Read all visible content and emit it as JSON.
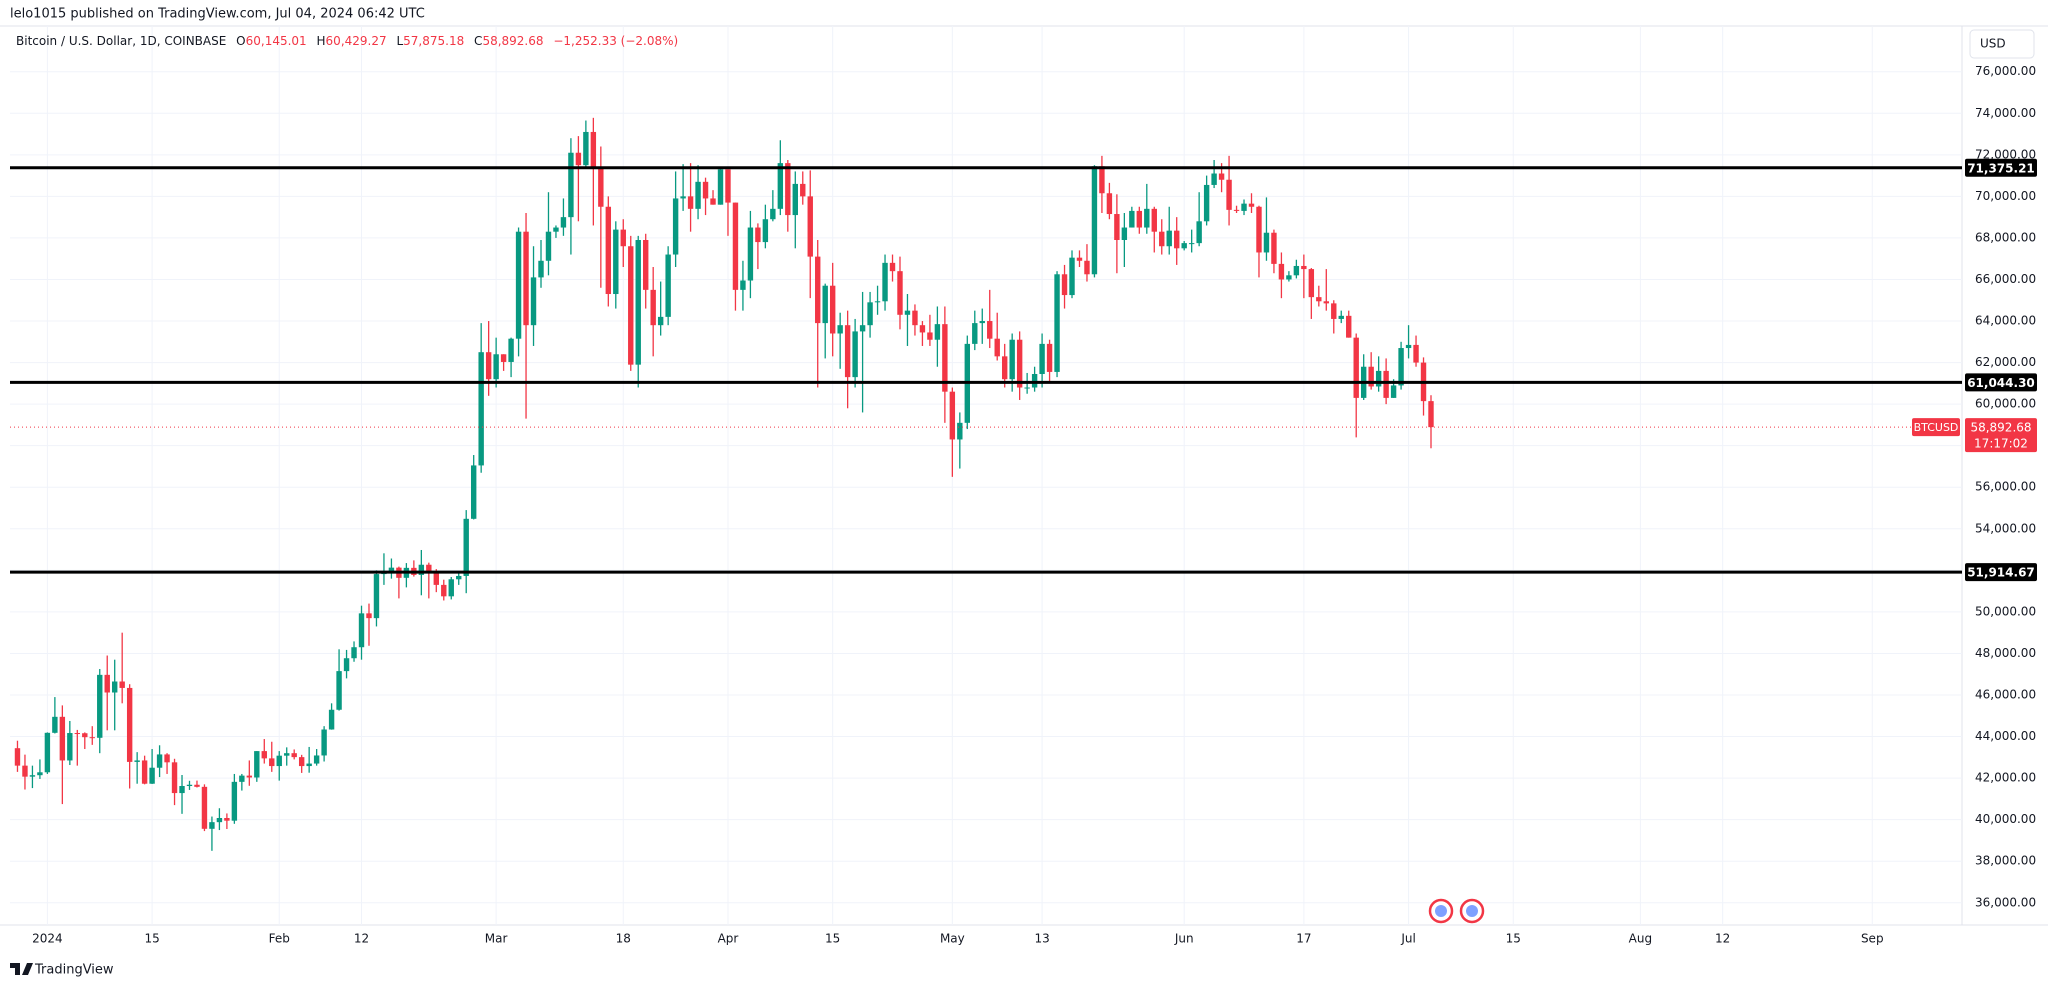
{
  "header": {
    "published": "lelo1015 published on TradingView.com, Jul 04, 2024 06:42 UTC"
  },
  "footer": {
    "brand": "TradingView"
  },
  "chart_data": {
    "type": "candlestick",
    "title": "Bitcoin / U.S. Dollar, 1D, COINBASE",
    "currency": "USD",
    "legend": [
      {
        "key": "O",
        "value": "60,145.01"
      },
      {
        "key": "H",
        "value": "60,429.27"
      },
      {
        "key": "L",
        "value": "57,875.18"
      },
      {
        "key": "C",
        "value": "58,892.68"
      }
    ],
    "change": "−1,252.33 (−2.08%)",
    "up_color": "#089981",
    "down_color": "#f23645",
    "grid": true,
    "dates": [
      "2023-12-28",
      "2023-12-29",
      "2023-12-30",
      "2023-12-31",
      "2024-01-01",
      "2024-01-02",
      "2024-01-03",
      "2024-01-04",
      "2024-01-05",
      "2024-01-06",
      "2024-01-07",
      "2024-01-08",
      "2024-01-09",
      "2024-01-10",
      "2024-01-11",
      "2024-01-12",
      "2024-01-13",
      "2024-01-14",
      "2024-01-15",
      "2024-01-16",
      "2024-01-17",
      "2024-01-18",
      "2024-01-19",
      "2024-01-20",
      "2024-01-21",
      "2024-01-22",
      "2024-01-23",
      "2024-01-24",
      "2024-01-25",
      "2024-01-26",
      "2024-01-27",
      "2024-01-28",
      "2024-01-29",
      "2024-01-30",
      "2024-01-31",
      "2024-02-01",
      "2024-02-02",
      "2024-02-03",
      "2024-02-04",
      "2024-02-05",
      "2024-02-06",
      "2024-02-07",
      "2024-02-08",
      "2024-02-09",
      "2024-02-10",
      "2024-02-11",
      "2024-02-12",
      "2024-02-13",
      "2024-02-14",
      "2024-02-15",
      "2024-02-16",
      "2024-02-17",
      "2024-02-18",
      "2024-02-19",
      "2024-02-20",
      "2024-02-21",
      "2024-02-22",
      "2024-02-23",
      "2024-02-24",
      "2024-02-25",
      "2024-02-26",
      "2024-02-27",
      "2024-02-28",
      "2024-02-29",
      "2024-03-01",
      "2024-03-02",
      "2024-03-03",
      "2024-03-04",
      "2024-03-05",
      "2024-03-06",
      "2024-03-07",
      "2024-03-08",
      "2024-03-09",
      "2024-03-10",
      "2024-03-11",
      "2024-03-12",
      "2024-03-13",
      "2024-03-14",
      "2024-03-15",
      "2024-03-16",
      "2024-03-17",
      "2024-03-18",
      "2024-03-19",
      "2024-03-20",
      "2024-03-21",
      "2024-03-22",
      "2024-03-23",
      "2024-03-24",
      "2024-03-25",
      "2024-03-26",
      "2024-03-27",
      "2024-03-28",
      "2024-03-29",
      "2024-03-30",
      "2024-03-31",
      "2024-04-01",
      "2024-04-02",
      "2024-04-03",
      "2024-04-04",
      "2024-04-05",
      "2024-04-06",
      "2024-04-07",
      "2024-04-08",
      "2024-04-09",
      "2024-04-10",
      "2024-04-11",
      "2024-04-12",
      "2024-04-13",
      "2024-04-14",
      "2024-04-15",
      "2024-04-16",
      "2024-04-17",
      "2024-04-18",
      "2024-04-19",
      "2024-04-20",
      "2024-04-21",
      "2024-04-22",
      "2024-04-23",
      "2024-04-24",
      "2024-04-25",
      "2024-04-26",
      "2024-04-27",
      "2024-04-28",
      "2024-04-29",
      "2024-04-30",
      "2024-05-01",
      "2024-05-02",
      "2024-05-03",
      "2024-05-04",
      "2024-05-05",
      "2024-05-06",
      "2024-05-07",
      "2024-05-08",
      "2024-05-09",
      "2024-05-10",
      "2024-05-11",
      "2024-05-12",
      "2024-05-13",
      "2024-05-14",
      "2024-05-15",
      "2024-05-16",
      "2024-05-17",
      "2024-05-18",
      "2024-05-19",
      "2024-05-20",
      "2024-05-21",
      "2024-05-22",
      "2024-05-23",
      "2024-05-24",
      "2024-05-25",
      "2024-05-26",
      "2024-05-27",
      "2024-05-28",
      "2024-05-29",
      "2024-05-30",
      "2024-05-31",
      "2024-06-01",
      "2024-06-02",
      "2024-06-03",
      "2024-06-04",
      "2024-06-05",
      "2024-06-06",
      "2024-06-07",
      "2024-06-08",
      "2024-06-09",
      "2024-06-10",
      "2024-06-11",
      "2024-06-12",
      "2024-06-13",
      "2024-06-14",
      "2024-06-15",
      "2024-06-16",
      "2024-06-17",
      "2024-06-18",
      "2024-06-19",
      "2024-06-20",
      "2024-06-21",
      "2024-06-22",
      "2024-06-23",
      "2024-06-24",
      "2024-06-25",
      "2024-06-26",
      "2024-06-27",
      "2024-06-28",
      "2024-06-29",
      "2024-06-30",
      "2024-07-01",
      "2024-07-02",
      "2024-07-03",
      "2024-07-04"
    ],
    "open": [
      43440,
      42600,
      42070,
      42140,
      42280,
      44180,
      44950,
      42850,
      44170,
      44160,
      43970,
      43940,
      46970,
      46120,
      46650,
      46340,
      42780,
      42850,
      41730,
      42500,
      43140,
      42760,
      41280,
      41620,
      41680,
      41580,
      39560,
      39880,
      40080,
      39950,
      41820,
      42120,
      42030,
      43300,
      42950,
      42580,
      43080,
      43200,
      43010,
      42580,
      42700,
      43090,
      44340,
      45290,
      47150,
      47770,
      48300,
      49930,
      49700,
      51820,
      51920,
      52130,
      51640,
      52120,
      51780,
      52270,
      51850,
      51300,
      50750,
      51570,
      51730,
      54480,
      57050,
      62500,
      61200,
      62400,
      62030,
      63150,
      68300,
      63800,
      66100,
      66900,
      68300,
      68500,
      69000,
      72100,
      71500,
      73100,
      71400,
      69500,
      65300,
      68400,
      67600,
      61900,
      67900,
      65500,
      63800,
      64200,
      67200,
      69900,
      70000,
      69400,
      70700,
      69900,
      69600,
      71300,
      69700,
      65500,
      65950,
      68500,
      67800,
      68900,
      69400,
      71600,
      69100,
      70600,
      70000,
      67100,
      63900,
      65700,
      63400,
      63800,
      61300,
      63500,
      63800,
      64900,
      64950,
      66800,
      66400,
      64300,
      64500,
      63800,
      63450,
      63100,
      63850,
      60600,
      58300,
      59100,
      62900,
      63900,
      64000,
      63150,
      62300,
      61200,
      63100,
      60800,
      60800,
      61450,
      62900,
      61550,
      66250,
      65250,
      67050,
      66900,
      66250,
      71450,
      70150,
      69150,
      67900,
      68500,
      69300,
      68500,
      69400,
      68300,
      67600,
      68350,
      67500,
      67750,
      67750,
      68800,
      70550,
      71100,
      70800,
      69350,
      69300,
      69650,
      69500,
      67300,
      68250,
      66750,
      66000,
      66200,
      66650,
      66500,
      65150,
      64950,
      64850,
      64100,
      64250,
      63200,
      60300,
      61800,
      60850,
      61600,
      60300,
      60900,
      62700,
      62850,
      62000,
      60145.01
    ],
    "high": [
      43800,
      43130,
      42600,
      42900,
      44200,
      45900,
      45500,
      44750,
      44320,
      44200,
      44500,
      47250,
      47900,
      47700,
      49000,
      46520,
      43250,
      43080,
      43400,
      43580,
      43200,
      42930,
      42150,
      41870,
      41880,
      41700,
      40150,
      40550,
      40300,
      42200,
      42200,
      42850,
      43300,
      43880,
      43750,
      43300,
      43480,
      43380,
      43120,
      43500,
      43400,
      44500,
      45600,
      48200,
      48170,
      48580,
      50300,
      50400,
      52000,
      52820,
      52570,
      52180,
      52350,
      52480,
      52980,
      52370,
      52060,
      51550,
      51680,
      51950,
      54900,
      57550,
      63900,
      64000,
      63200,
      62400,
      63200,
      68500,
      69200,
      67600,
      67900,
      70200,
      68600,
      69900,
      72800,
      72900,
      73650,
      73780,
      72400,
      70000,
      68800,
      68900,
      68100,
      68100,
      68200,
      66600,
      65900,
      67600,
      71200,
      71550,
      71600,
      71500,
      70900,
      70300,
      71350,
      71300,
      69700,
      66900,
      69300,
      68700,
      69600,
      70300,
      72700,
      71750,
      71200,
      71200,
      71250,
      67900,
      65800,
      66800,
      64400,
      64500,
      64100,
      65400,
      65400,
      65700,
      67200,
      67200,
      67100,
      65300,
      64800,
      64000,
      64300,
      64700,
      64700,
      60800,
      59600,
      63300,
      64500,
      64600,
      65500,
      64400,
      62900,
      63400,
      63500,
      61500,
      61800,
      63400,
      63100,
      66400,
      66700,
      67400,
      67400,
      67700,
      71500,
      71950,
      70650,
      70100,
      69200,
      69500,
      69500,
      70600,
      69500,
      68900,
      69500,
      69000,
      67850,
      68400,
      70200,
      71000,
      71750,
      71600,
      71950,
      69550,
      69850,
      70150,
      69550,
      69950,
      68400,
      67300,
      66400,
      66950,
      67200,
      66550,
      65700,
      66500,
      65000,
      64500,
      64500,
      63400,
      62400,
      62500,
      62300,
      62200,
      61200,
      63000,
      63800,
      63300,
      62250,
      60429.27
    ],
    "low": [
      42300,
      41450,
      41520,
      41960,
      42200,
      44150,
      40750,
      42630,
      42600,
      43400,
      43600,
      43200,
      44300,
      44300,
      45600,
      41500,
      41730,
      41700,
      41720,
      42050,
      42200,
      40700,
      40280,
      41430,
      41550,
      39450,
      38500,
      39500,
      39550,
      39800,
      41400,
      41630,
      41820,
      42700,
      42300,
      41880,
      42600,
      42900,
      42250,
      42260,
      42600,
      42800,
      44330,
      45250,
      46800,
      47600,
      47700,
      48370,
      49300,
      51300,
      51600,
      50650,
      51180,
      51700,
      50800,
      50650,
      50950,
      50550,
      50600,
      51300,
      50900,
      54450,
      56700,
      60400,
      60800,
      61600,
      61300,
      62300,
      59300,
      62800,
      65600,
      66200,
      68000,
      68100,
      67200,
      68800,
      71350,
      68600,
      65600,
      64700,
      64600,
      66600,
      61600,
      60800,
      64600,
      62300,
      63300,
      63800,
      66600,
      69300,
      68300,
      68900,
      69100,
      69600,
      69600,
      68100,
      64500,
      64500,
      65100,
      66500,
      67500,
      68800,
      69100,
      68300,
      67500,
      69600,
      65100,
      60800,
      62200,
      62300,
      61700,
      59800,
      60800,
      59600,
      63200,
      64300,
      64500,
      65900,
      63600,
      62800,
      63300,
      62800,
      62800,
      61800,
      59100,
      56500,
      56900,
      58800,
      62600,
      62900,
      62700,
      62100,
      60800,
      60600,
      60200,
      60500,
      60600,
      60800,
      61100,
      61300,
      64600,
      65100,
      66600,
      65900,
      66100,
      69200,
      68900,
      66300,
      66600,
      68500,
      68200,
      68200,
      67300,
      67200,
      67200,
      66700,
      67400,
      67300,
      67600,
      68600,
      70400,
      70200,
      68600,
      69200,
      69100,
      69200,
      66100,
      66900,
      66300,
      65100,
      65900,
      66050,
      65100,
      64100,
      64700,
      64500,
      63400,
      63900,
      63200,
      58400,
      60200,
      60700,
      60600,
      60000,
      60300,
      60700,
      62200,
      61800,
      59450,
      57875.18
    ],
    "close": [
      42600,
      42070,
      42140,
      42280,
      44180,
      44950,
      42850,
      44170,
      44160,
      43970,
      43940,
      46970,
      46120,
      46650,
      46340,
      42780,
      42850,
      41730,
      42500,
      43140,
      42760,
      41280,
      41620,
      41680,
      41580,
      39560,
      39880,
      40080,
      39950,
      41820,
      42120,
      42030,
      43300,
      42950,
      42580,
      43080,
      43200,
      43010,
      42580,
      42700,
      43090,
      44340,
      45290,
      47150,
      47770,
      48300,
      49930,
      49700,
      51820,
      51920,
      52130,
      51640,
      52120,
      51780,
      52270,
      51850,
      51300,
      50750,
      51570,
      51730,
      54480,
      57050,
      62500,
      61200,
      62400,
      62030,
      63150,
      68300,
      63800,
      66100,
      66900,
      68300,
      68500,
      69000,
      72100,
      71500,
      73100,
      71400,
      69500,
      65300,
      68400,
      67600,
      61900,
      67900,
      65500,
      63800,
      64200,
      67200,
      69900,
      70000,
      69400,
      70700,
      69900,
      69600,
      71300,
      69700,
      65500,
      65950,
      68500,
      67800,
      68900,
      69400,
      71600,
      69100,
      70600,
      70000,
      67100,
      63900,
      65700,
      63400,
      63800,
      61300,
      63500,
      63800,
      64900,
      64950,
      66800,
      66400,
      64300,
      64500,
      63800,
      63450,
      63100,
      63850,
      60600,
      58300,
      59100,
      62900,
      63900,
      64000,
      63150,
      62300,
      61200,
      63100,
      60800,
      60800,
      61450,
      62900,
      61550,
      66250,
      65250,
      67050,
      66900,
      66250,
      71450,
      70150,
      69150,
      67900,
      68500,
      69300,
      68500,
      69400,
      68300,
      67600,
      68350,
      67500,
      67750,
      67750,
      68800,
      70550,
      71100,
      70800,
      69350,
      69300,
      69650,
      69500,
      67300,
      68250,
      66750,
      66000,
      66200,
      66650,
      66500,
      65150,
      64950,
      64850,
      64100,
      64250,
      63200,
      60300,
      61800,
      60850,
      61600,
      60300,
      60900,
      62700,
      62850,
      62000,
      60145.01,
      58892.68
    ],
    "ylim": [
      34930,
      78200
    ],
    "yticks": [
      {
        "value": 36000,
        "label": "36,000.00"
      },
      {
        "value": 38000,
        "label": "38,000.00"
      },
      {
        "value": 40000,
        "label": "40,000.00"
      },
      {
        "value": 42000,
        "label": "42,000.00"
      },
      {
        "value": 44000,
        "label": "44,000.00"
      },
      {
        "value": 46000,
        "label": "46,000.00"
      },
      {
        "value": 48000,
        "label": "48,000.00"
      },
      {
        "value": 50000,
        "label": "50,000.00"
      },
      {
        "value": 52000,
        "label": "52,000.00"
      },
      {
        "value": 54000,
        "label": "54,000.00"
      },
      {
        "value": 56000,
        "label": "56,000.00"
      },
      {
        "value": 58000,
        "label": "58,000.00"
      },
      {
        "value": 60000,
        "label": "60,000.00"
      },
      {
        "value": 62000,
        "label": "62,000.00"
      },
      {
        "value": 64000,
        "label": "64,000.00"
      },
      {
        "value": 66000,
        "label": "66,000.00"
      },
      {
        "value": 68000,
        "label": "68,000.00"
      },
      {
        "value": 70000,
        "label": "70,000.00"
      },
      {
        "value": 72000,
        "label": "72,000.00"
      },
      {
        "value": 74000,
        "label": "74,000.00"
      },
      {
        "value": 76000,
        "label": "76,000.00"
      }
    ],
    "xlim": [
      "2023-12-27",
      "2024-09-13"
    ],
    "xticks": [
      {
        "value": "2024-01-01",
        "label": "2024"
      },
      {
        "value": "2024-01-15",
        "label": "15"
      },
      {
        "value": "2024-02-01",
        "label": "Feb"
      },
      {
        "value": "2024-02-12",
        "label": "12"
      },
      {
        "value": "2024-03-01",
        "label": "Mar"
      },
      {
        "value": "2024-03-18",
        "label": "18"
      },
      {
        "value": "2024-04-01",
        "label": "Apr"
      },
      {
        "value": "2024-04-15",
        "label": "15"
      },
      {
        "value": "2024-05-01",
        "label": "May"
      },
      {
        "value": "2024-05-13",
        "label": "13"
      },
      {
        "value": "2024-06-01",
        "label": "Jun"
      },
      {
        "value": "2024-06-17",
        "label": "17"
      },
      {
        "value": "2024-07-01",
        "label": "Jul"
      },
      {
        "value": "2024-07-15",
        "label": "15"
      },
      {
        "value": "2024-08-01",
        "label": "Aug"
      },
      {
        "value": "2024-08-12",
        "label": "12"
      },
      {
        "value": "2024-09-01",
        "label": "Sep"
      }
    ],
    "hlines": [
      {
        "value": 71375.21,
        "label": "71,375.21"
      },
      {
        "value": 61044.3,
        "label": "61,044.30"
      },
      {
        "value": 51914.67,
        "label": "51,914.67"
      }
    ],
    "last_price": {
      "symbol": "BTCUSD",
      "label": "58,892.68",
      "countdown": "17:17:02"
    }
  }
}
